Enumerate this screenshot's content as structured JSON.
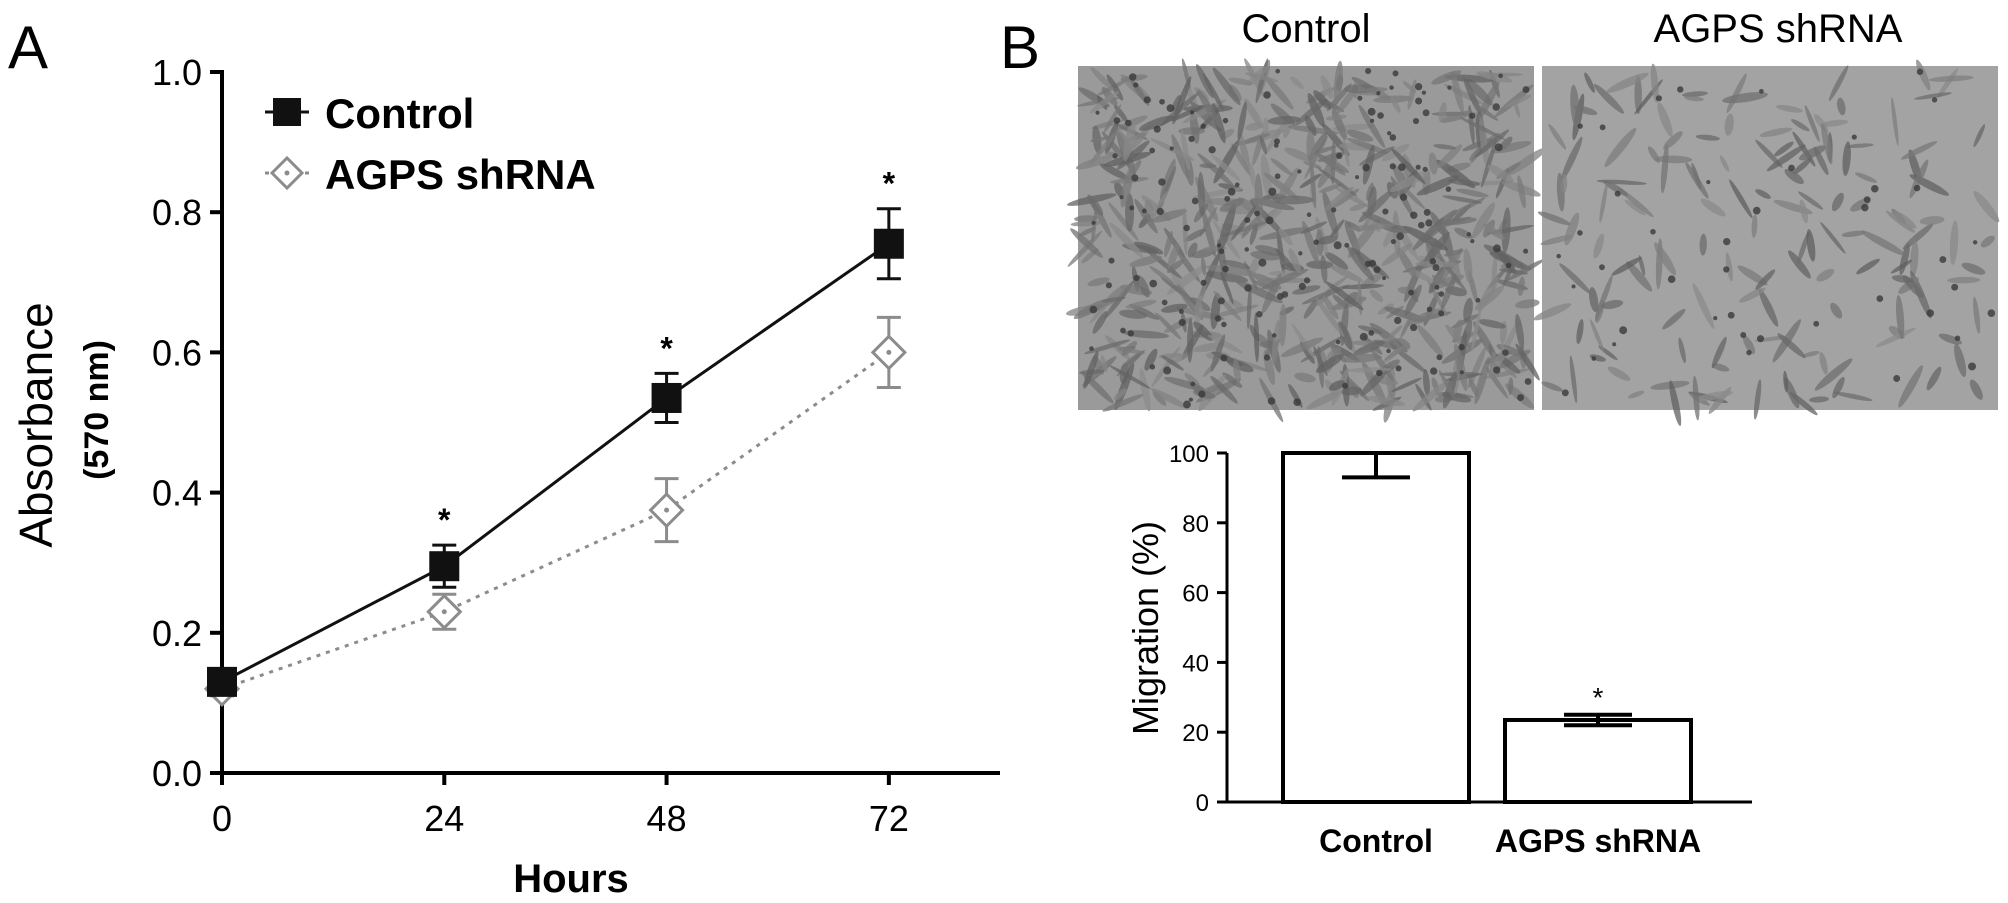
{
  "panels": {
    "a_label": "A",
    "b_label": "B"
  },
  "images": {
    "control_label": "Control",
    "shrna_label": "AGPS shRNA",
    "control_bg": "#9a9a9a",
    "shrna_bg": "#a3a3a3",
    "control_cell_density": 0.9,
    "shrna_cell_density": 0.25
  },
  "chart_data": [
    {
      "type": "line",
      "xlabel": "Hours",
      "ylabel": "Absorbance",
      "ylabel_sub": "(570 nm)",
      "xlim": [
        0,
        84
      ],
      "ylim": [
        0.0,
        1.0
      ],
      "xticks": [
        0,
        24,
        48,
        72
      ],
      "xtick_labels": [
        "0",
        "24",
        "48",
        "72"
      ],
      "yticks": [
        0.0,
        0.2,
        0.4,
        0.6,
        0.8,
        1.0
      ],
      "ytick_labels": [
        "0.0",
        "0.2",
        "0.4",
        "0.6",
        "0.8",
        "1.0"
      ],
      "legend_position": "top-left",
      "series": [
        {
          "name": "Control",
          "marker": "square",
          "color": "#111111",
          "x": [
            0,
            24,
            48,
            72
          ],
          "y": [
            0.13,
            0.295,
            0.535,
            0.755
          ],
          "err": [
            0.01,
            0.03,
            0.035,
            0.05
          ]
        },
        {
          "name": "AGPS shRNA",
          "marker": "diamond",
          "color": "#8c8c8c",
          "x": [
            0,
            24,
            48,
            72
          ],
          "y": [
            0.12,
            0.23,
            0.375,
            0.6
          ],
          "err": [
            0.01,
            0.025,
            0.045,
            0.05
          ]
        }
      ],
      "significance": [
        {
          "x": 24,
          "label": "*"
        },
        {
          "x": 48,
          "label": "*"
        },
        {
          "x": 72,
          "label": "*"
        }
      ]
    },
    {
      "type": "bar",
      "ylabel": "Migration (%)",
      "ylim": [
        0,
        100
      ],
      "yticks": [
        0,
        20,
        40,
        60,
        80,
        100
      ],
      "ytick_labels": [
        "0",
        "20",
        "40",
        "60",
        "80",
        "100"
      ],
      "categories": [
        "Control",
        "AGPS shRNA"
      ],
      "values": [
        100,
        23.5
      ],
      "err": [
        7,
        1.5
      ],
      "significance": [
        {
          "category": "AGPS shRNA",
          "label": "*"
        }
      ]
    }
  ]
}
